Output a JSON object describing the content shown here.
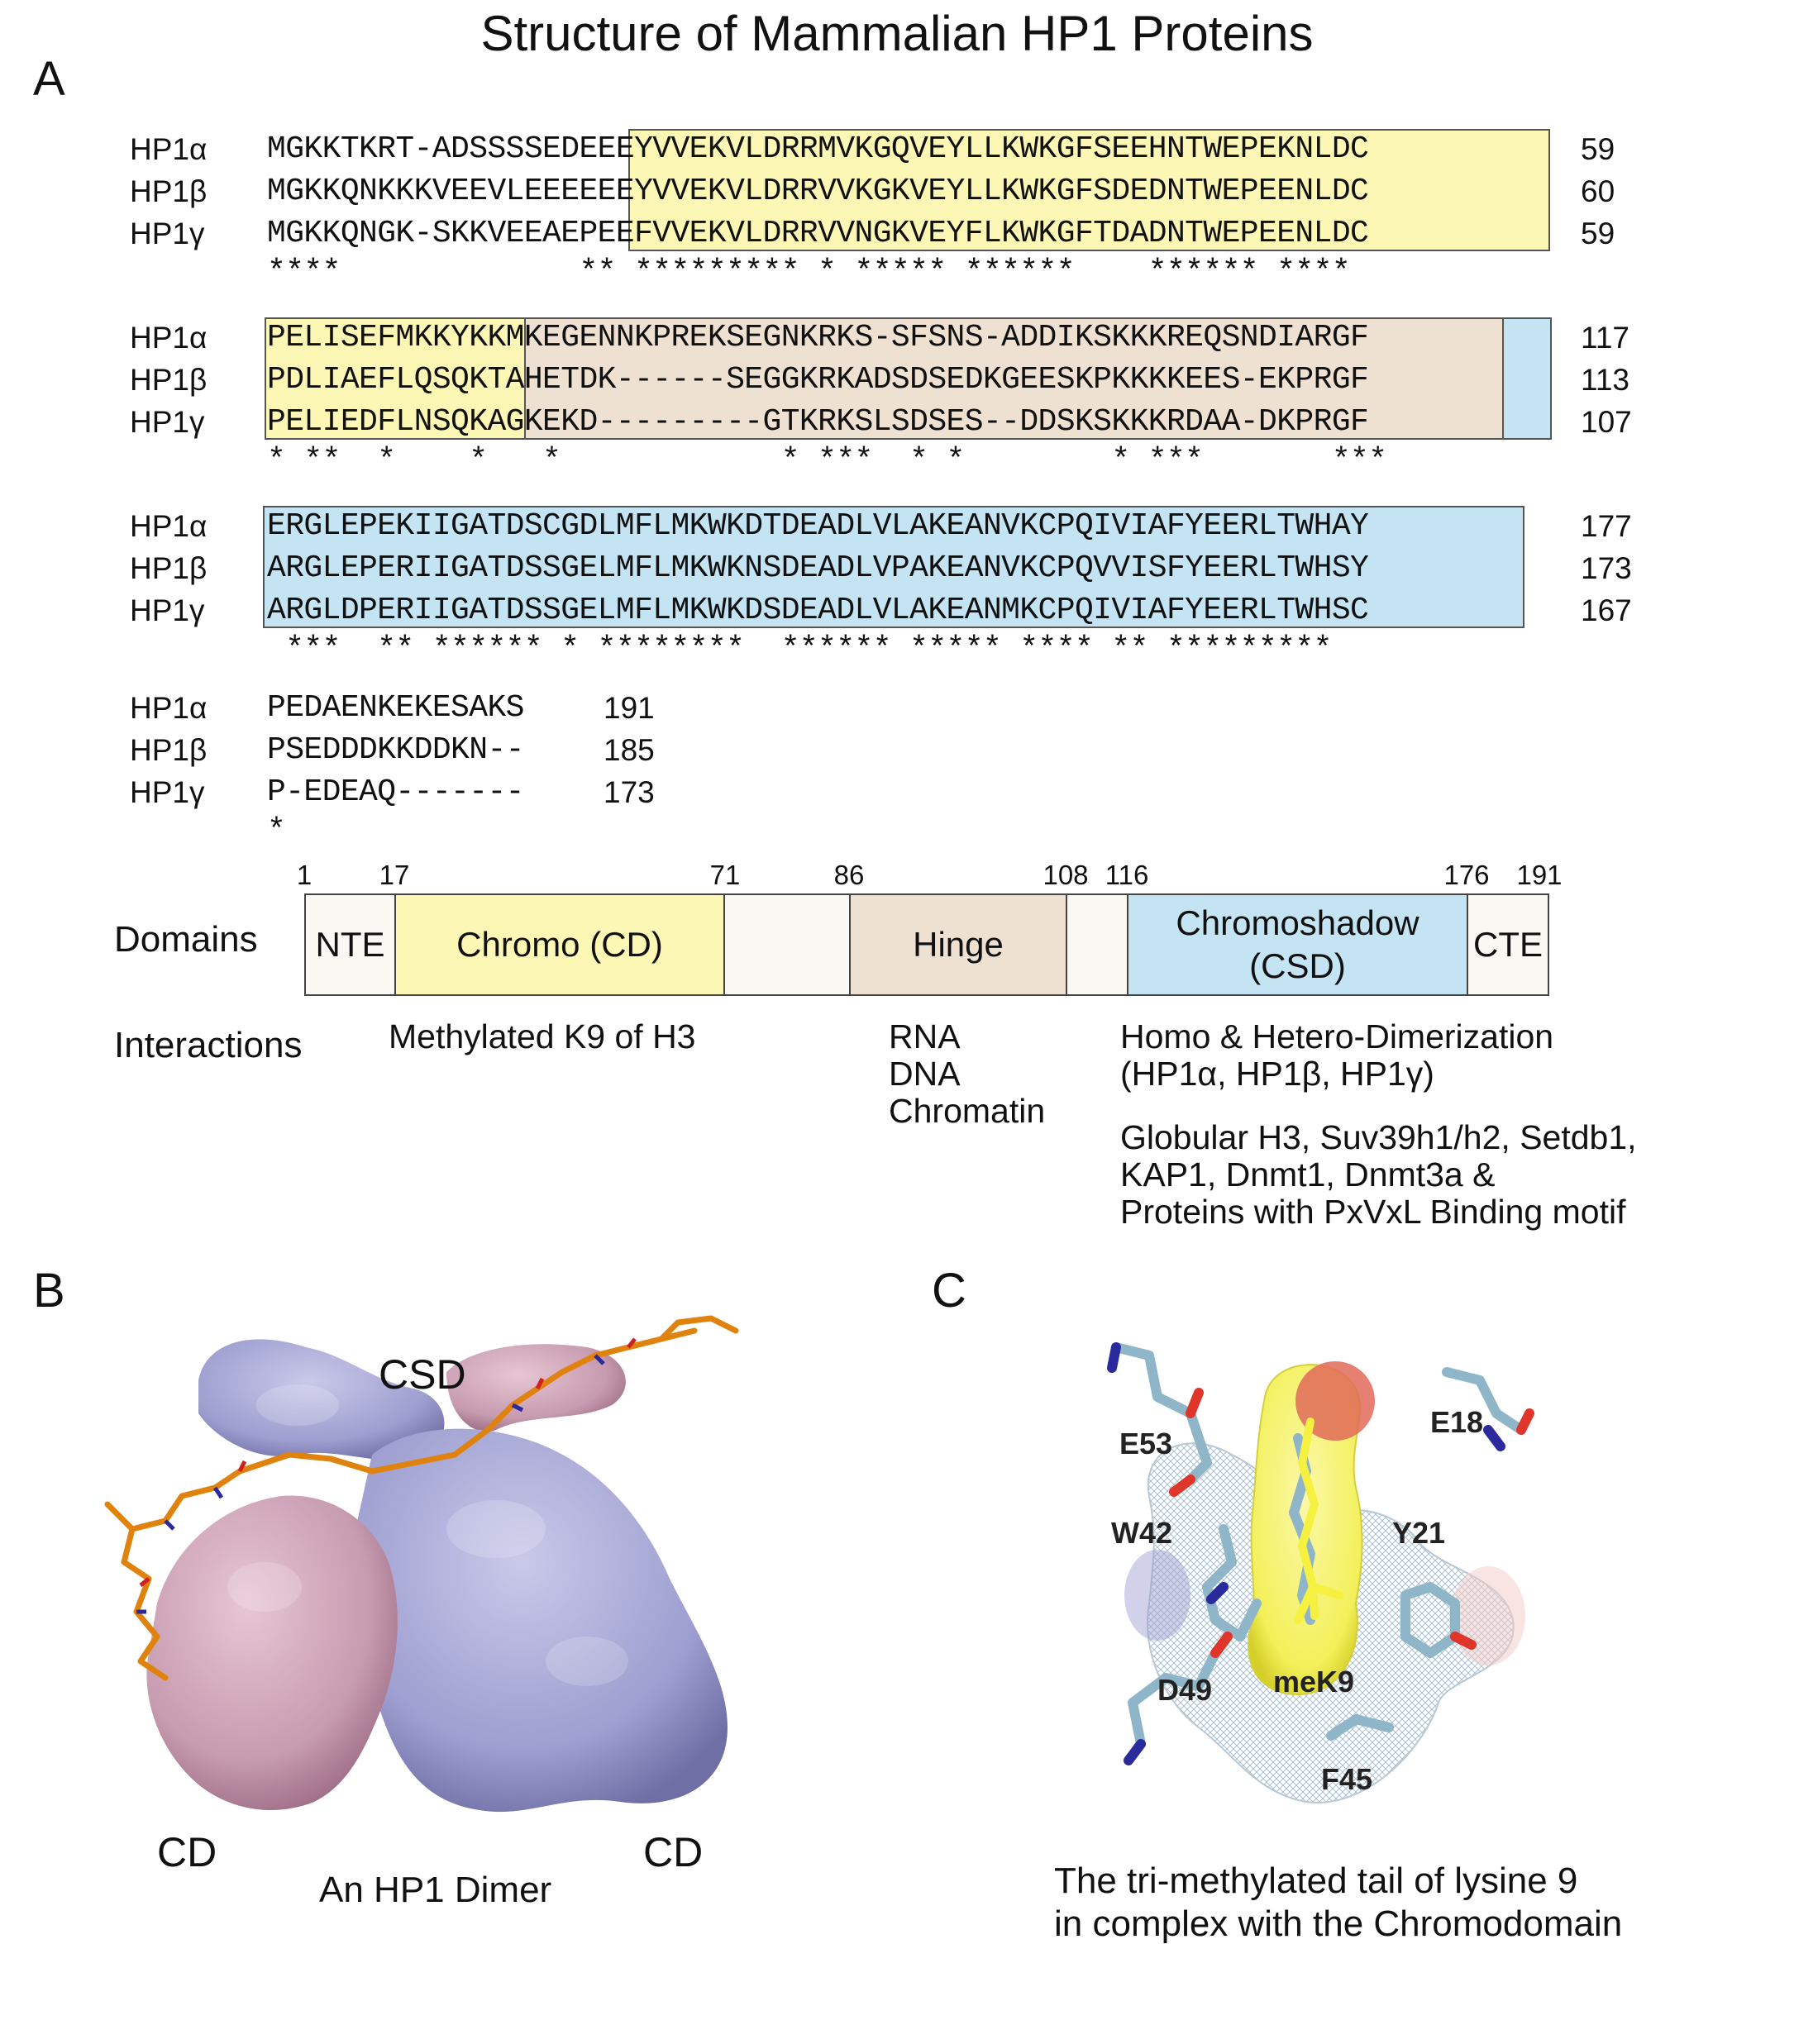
{
  "title": "Structure of Mammalian HP1 Proteins",
  "panels": {
    "a": "A",
    "b": "B",
    "c": "C"
  },
  "alignment": {
    "blocks": [
      {
        "rows": [
          {
            "name": "HP1α",
            "seq": "MGKKTKRT-ADSSSSEDEEEYVVEKVLDRRMVKGQVEYLLKWKGFSEEHNTWEPEKNLDC",
            "end": "59"
          },
          {
            "name": "HP1β",
            "seq": "MGKKQNKKKVEEVLEEEEEEYVVEKVLDRRVVKGKVEYLLKWKGFSDEDNTWEPEENLDC",
            "end": "60"
          },
          {
            "name": "HP1γ",
            "seq": "MGKKQNGK-SKKVEEAEPEEFVVEKVLDRRVVNGKVEYFLKWKGFTDADNTWEPEENLDC",
            "end": "59"
          }
        ],
        "stars": "****             ** ********* * ***** ******    ****** ****"
      },
      {
        "rows": [
          {
            "name": "HP1α",
            "seq": "PELISEFMKKYKKMKEGENNKPREKSEGNKRKS-SFSNS-ADDIKSKKKREQSNDIARGF",
            "end": "117"
          },
          {
            "name": "HP1β",
            "seq": "PDLIAEFLQSQKTAHETDK------SEGGKRKADSDSEDKGEESKPKKKKEES-EKPRGF",
            "end": "113"
          },
          {
            "name": "HP1γ",
            "seq": "PELIEDFLNSQKAGKEKD---------GTKRKSLSDSES--DDSKSKKKRDAA-DKPRGF",
            "end": "107"
          }
        ],
        "stars": "* **  *    *   *            * ***  * *        * ***       ***"
      },
      {
        "rows": [
          {
            "name": "HP1α",
            "seq": "ERGLEPEKIIGATDSCGDLMFLMKWKDTDEADLVLAKEANVKCPQIVIAFYEERLTWHAY",
            "end": "177"
          },
          {
            "name": "HP1β",
            "seq": "ARGLEPERIIGATDSSGELMFLMKWKNSDEADLVPAKEANVKCPQVVISFYEERLTWHSY",
            "end": "173"
          },
          {
            "name": "HP1γ",
            "seq": "ARGLDPERIIGATDSSGELMFLMKWKDSDEADLVLAKEANMKCPQIVIAFYEERLTWHSC",
            "end": "167"
          }
        ],
        "stars": " ***  ** ****** * ********  ****** ***** **** ** *********"
      },
      {
        "rows": [
          {
            "name": "HP1α",
            "seq": "PEDAENKEKESAKS",
            "end": "191"
          },
          {
            "name": "HP1β",
            "seq": "PSEDDDKKDDKN--",
            "end": "185"
          },
          {
            "name": "HP1γ",
            "seq": "P-EDEAQ-------",
            "end": "173"
          }
        ],
        "stars": "*"
      }
    ]
  },
  "domains": {
    "row_label": "Domains",
    "ticks": [
      "1",
      "17",
      "71",
      "86",
      "108",
      "116",
      "176",
      "191"
    ],
    "segments": [
      "NTE",
      "Chromo (CD)",
      "",
      "Hinge",
      "",
      "Chromoshadow (CSD)",
      "CTE"
    ]
  },
  "interactions": {
    "row_label": "Interactions",
    "chromo": "Methylated K9 of H3",
    "hinge": [
      "RNA",
      "DNA",
      "Chromatin"
    ],
    "csd_dimer": [
      "Homo & Hetero-Dimerization",
      "(HP1α, HP1β, HP1γ)"
    ],
    "csd_partners": [
      "Globular H3, Suv39h1/h2, Setdb1,",
      "KAP1, Dnmt1, Dnmt3a &",
      "Proteins with PxVxL Binding motif"
    ]
  },
  "dimer": {
    "csd_label": "CSD",
    "cd_left": "CD",
    "cd_right": "CD",
    "caption": "An HP1 Dimer",
    "colors": {
      "pink": "#c79bb0",
      "lavender": "#9e9ed0",
      "peptide": "#e0820e"
    }
  },
  "complex": {
    "residues": [
      "E53",
      "E18",
      "W42",
      "Y21",
      "D49",
      "meK9",
      "F45"
    ],
    "caption": [
      "The tri-methylated tail of lysine 9",
      "in complex with the Chromodomain"
    ],
    "colors": {
      "surface": "#f3f05a",
      "stick": "#8fb6c8",
      "oxygen": "#e0352a",
      "nitrogen": "#2a2a9c"
    }
  }
}
